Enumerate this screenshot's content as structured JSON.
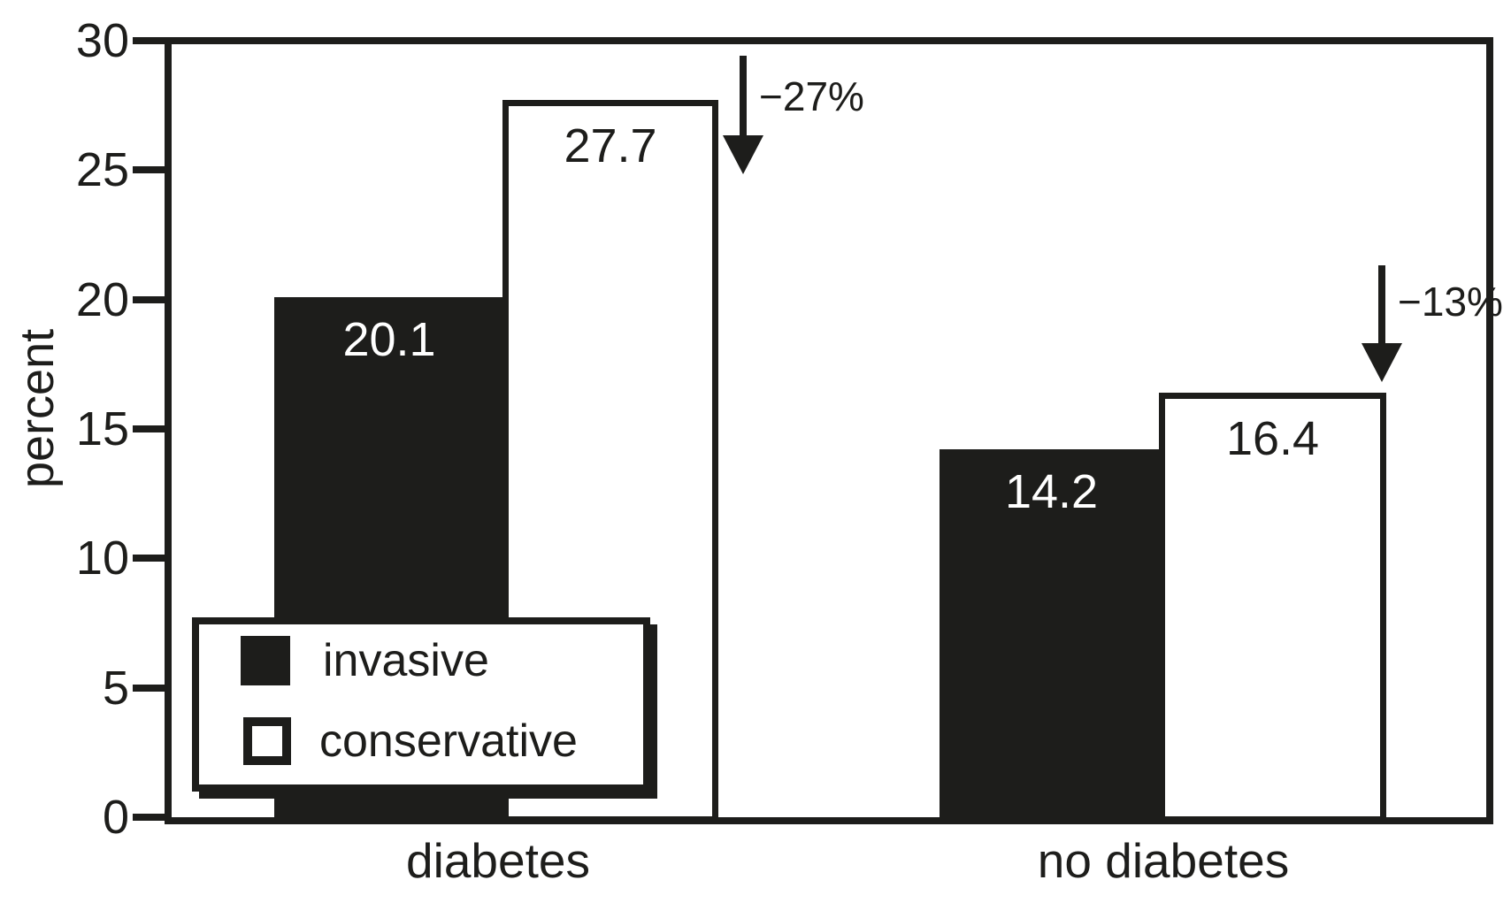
{
  "chart_data": {
    "type": "bar",
    "title": "",
    "ylabel": "percent",
    "ylim": [
      0,
      30
    ],
    "yticks_display": [
      30,
      25,
      20,
      15,
      10,
      5,
      0
    ],
    "grid": false,
    "legend_position": "lower left",
    "categories": [
      "diabetes",
      "no diabetes"
    ],
    "series": [
      {
        "name": "invasive",
        "values": [
          20.1,
          14.2
        ],
        "fill": "#1d1d1b",
        "label_color": "#ffffff"
      },
      {
        "name": "conservative",
        "values": [
          27.7,
          16.4
        ],
        "fill": "#ffffff",
        "label_color": "#1d1d1b"
      }
    ],
    "bar_value_labels": [
      "20.1",
      "27.7",
      "14.2",
      "16.4"
    ],
    "annotations": [
      {
        "text": "−27%",
        "category": "diabetes"
      },
      {
        "text": "−13%",
        "category": "no diabetes"
      }
    ],
    "ink_color": "#1d1d1b",
    "background_color": "#ffffff"
  }
}
